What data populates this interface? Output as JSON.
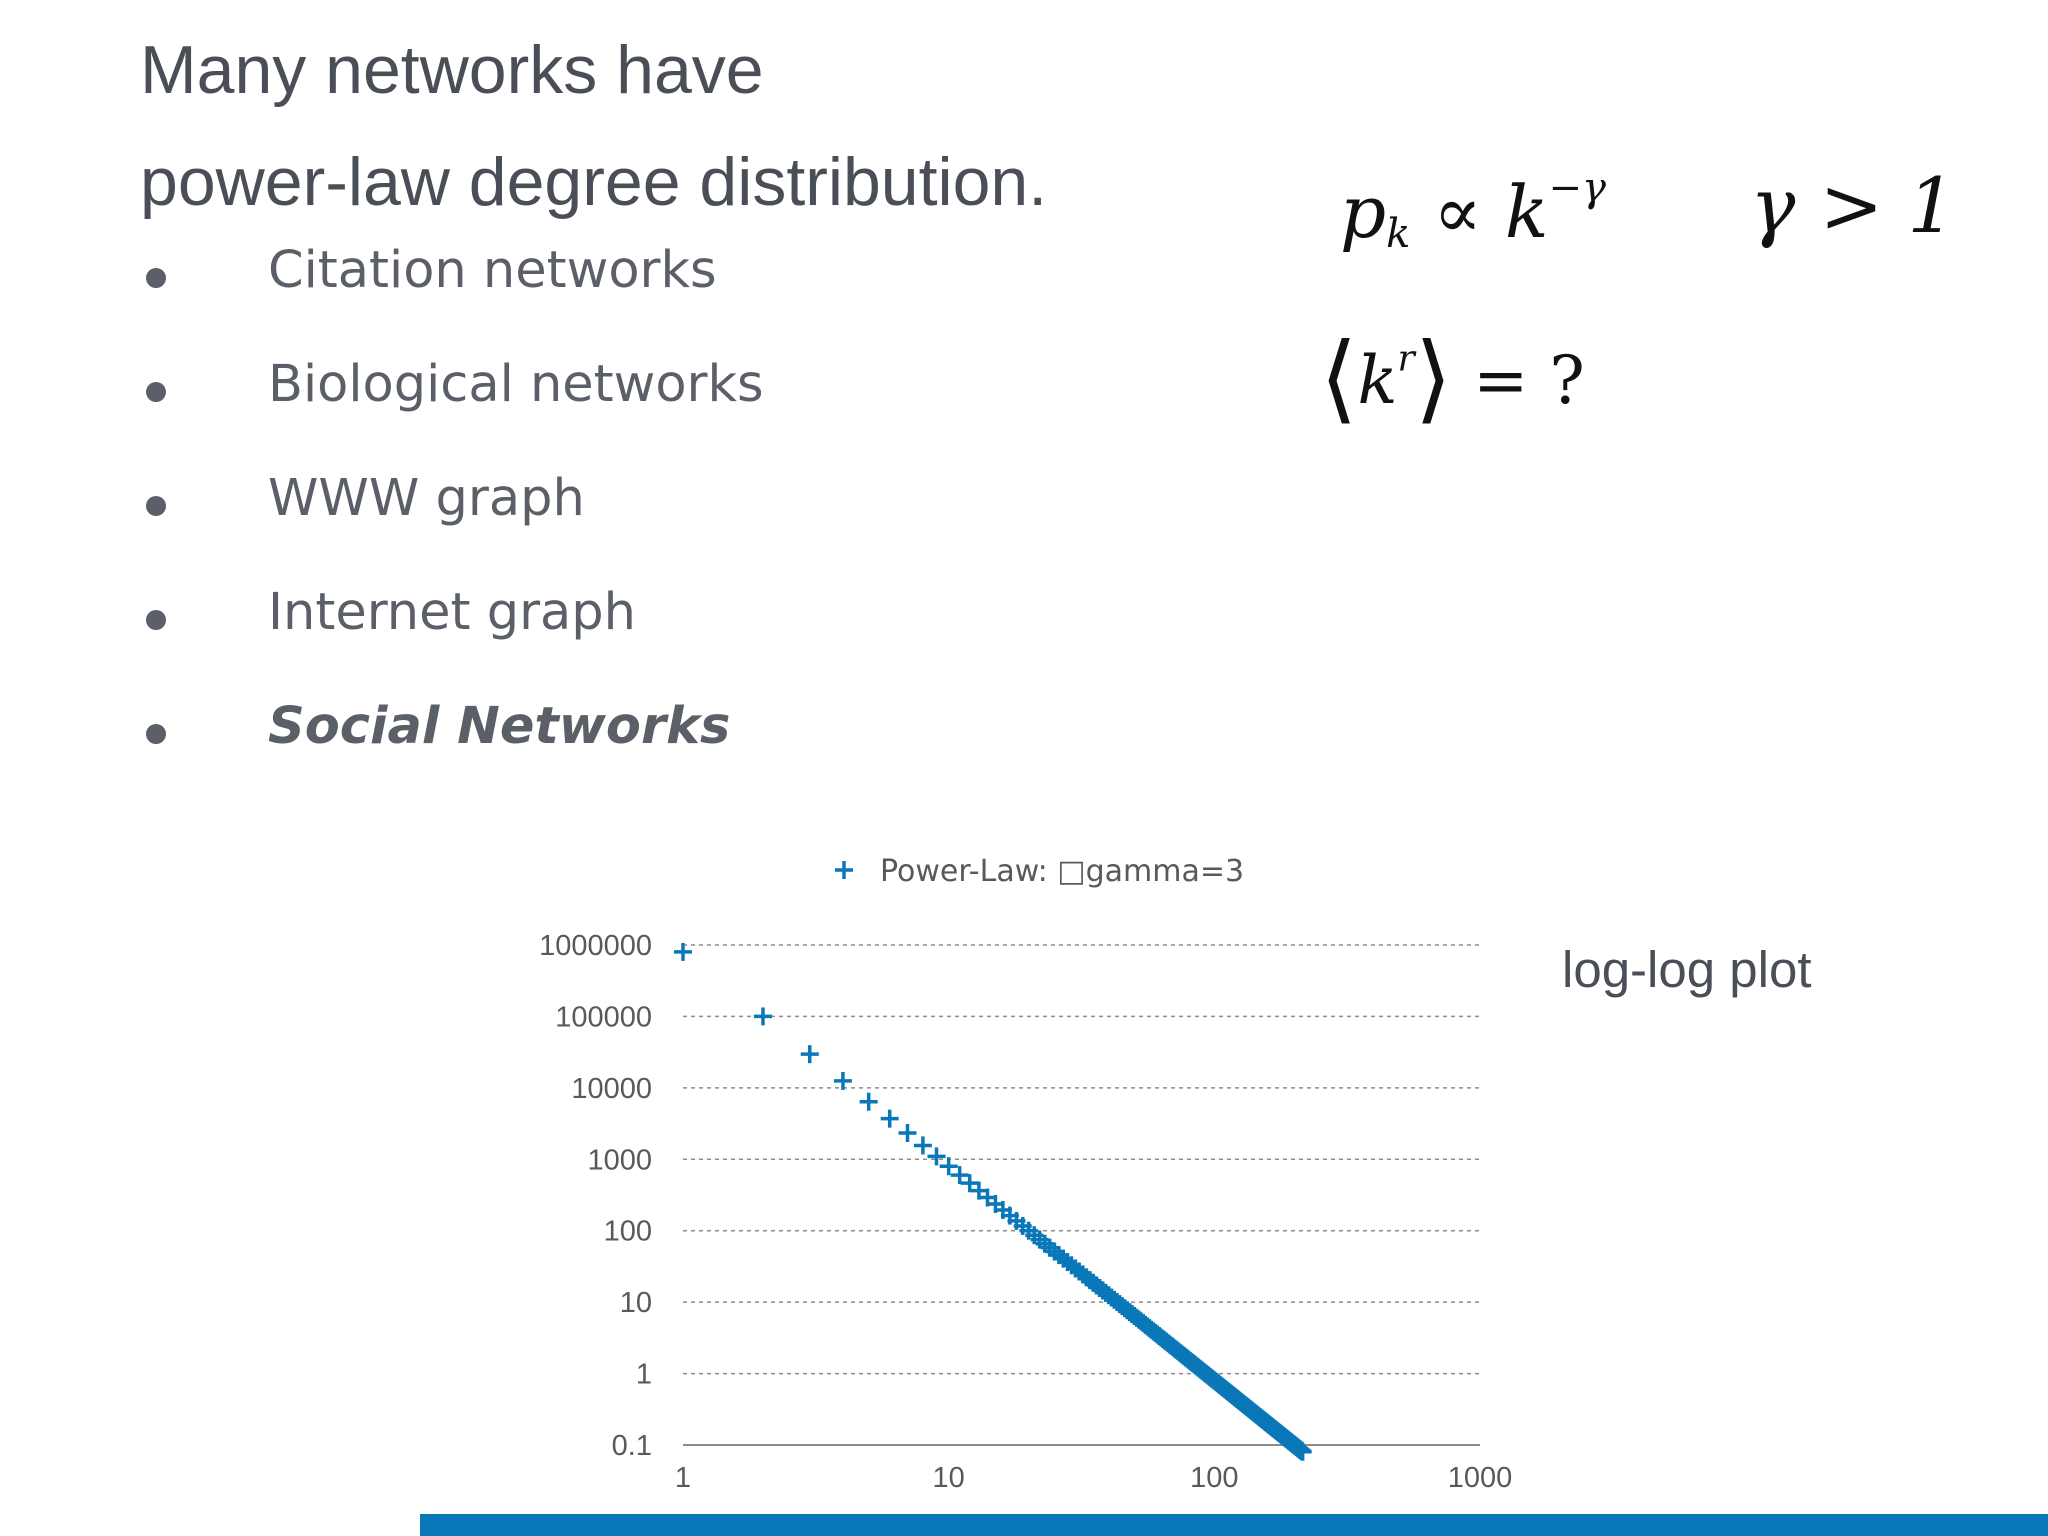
{
  "slide": {
    "title_line1": "Many networks have",
    "title_line2": "power-law degree distribution.",
    "bullets": [
      {
        "text": "Citation networks",
        "emphasis": false
      },
      {
        "text": "Biological networks",
        "emphasis": false
      },
      {
        "text": "WWW graph",
        "emphasis": false
      },
      {
        "text": "Internet graph",
        "emphasis": false
      },
      {
        "text": "Social Networks",
        "emphasis": true
      }
    ],
    "formulas": {
      "pk_base": "p",
      "pk_sub": "k",
      "proportional": "∝",
      "pk_k": "k",
      "pk_exponent": "−γ",
      "gamma_condition": "γ > 1",
      "moment_open": "⟨",
      "moment_k": "k",
      "moment_sup": "r",
      "moment_close": "⟩",
      "moment_rhs": "= ?"
    },
    "plot_note": "log-log plot",
    "accent_color": "#0a77b8"
  },
  "chart_data": {
    "type": "scatter",
    "x_scale": "log",
    "y_scale": "log",
    "xlim": [
      1,
      1000
    ],
    "ylim": [
      0.1,
      1000000
    ],
    "x_ticks": [
      "1",
      "10",
      "100",
      "1000"
    ],
    "y_ticks": [
      "0.1",
      "1",
      "10",
      "100",
      "1000",
      "10000",
      "100000",
      "1000000"
    ],
    "grid": "horizontal dashed",
    "legend_position": "top",
    "marker": "plus",
    "series_color": "#0a77b8",
    "series": [
      {
        "name": "Power-Law: □gamma=3",
        "gamma": 3,
        "x_start": 1,
        "x_end": 215,
        "x_step": 1,
        "y_at_x1": 800000
      }
    ]
  }
}
